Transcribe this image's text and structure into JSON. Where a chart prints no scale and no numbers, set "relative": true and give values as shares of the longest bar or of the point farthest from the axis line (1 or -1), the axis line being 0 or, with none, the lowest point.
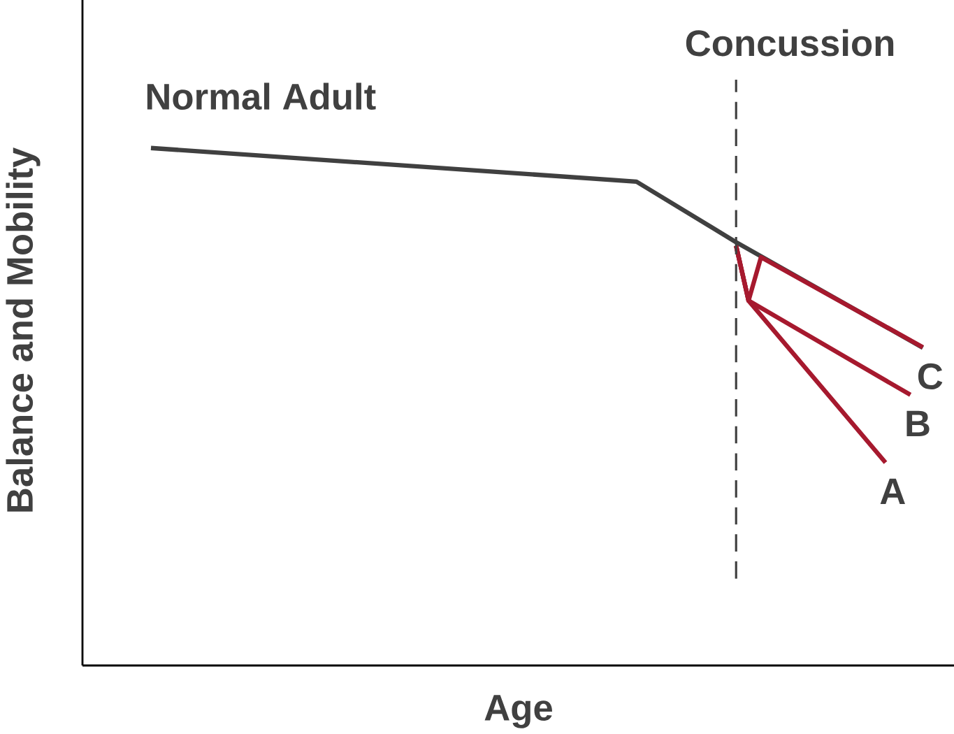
{
  "chart_data": {
    "type": "line",
    "relative": true,
    "xlabel": "Age",
    "ylabel": "Balance and Mobility",
    "marker": "none",
    "categories": [
      null,
      null,
      null,
      null,
      null,
      null,
      null,
      null,
      null,
      null,
      null,
      null,
      null,
      null,
      null,
      null,
      null,
      null,
      null,
      null,
      null,
      null,
      null,
      null,
      null,
      null,
      null,
      null,
      null,
      null,
      null,
      null,
      null,
      null,
      null,
      null,
      null,
      null,
      null,
      null,
      null,
      null,
      null,
      null,
      null,
      null,
      null,
      null,
      null,
      null,
      null,
      null,
      null,
      null,
      null,
      null,
      null,
      null,
      null,
      null,
      null,
      null,
      null,
      null,
      null,
      null,
      null,
      null,
      null,
      null
    ],
    "series": [
      {
        "name": "Normal Adult",
        "color": "#404040",
        "values": [
          null,
          null,
          null,
          null,
          null,
          1,
          null,
          null,
          null,
          null,
          null,
          null,
          null,
          null,
          null,
          null,
          null,
          null,
          null,
          null,
          null,
          null,
          null,
          null,
          null,
          null,
          null,
          null,
          null,
          null,
          null,
          null,
          null,
          null,
          null,
          null,
          null,
          null,
          null,
          null,
          null,
          null,
          null,
          null,
          0.935,
          null,
          null,
          null,
          null,
          null,
          null,
          null,
          0.818,
          null,
          null,
          null,
          null,
          null,
          null,
          null,
          null,
          null,
          null,
          null,
          null,
          null,
          null,
          0.614,
          null,
          null
        ]
      },
      {
        "name": "A",
        "color": "#a6192e",
        "values": [
          null,
          null,
          null,
          null,
          null,
          null,
          null,
          null,
          null,
          null,
          null,
          null,
          null,
          null,
          null,
          null,
          null,
          null,
          null,
          null,
          null,
          null,
          null,
          null,
          null,
          null,
          null,
          null,
          null,
          null,
          null,
          null,
          null,
          null,
          null,
          null,
          null,
          null,
          null,
          null,
          null,
          null,
          null,
          null,
          null,
          null,
          null,
          null,
          null,
          null,
          null,
          null,
          0.811,
          0.705,
          null,
          null,
          null,
          null,
          null,
          null,
          null,
          null,
          null,
          null,
          0.392,
          null,
          null,
          null,
          null,
          null
        ]
      },
      {
        "name": "B",
        "color": "#a6192e",
        "values": [
          null,
          null,
          null,
          null,
          null,
          null,
          null,
          null,
          null,
          null,
          null,
          null,
          null,
          null,
          null,
          null,
          null,
          null,
          null,
          null,
          null,
          null,
          null,
          null,
          null,
          null,
          null,
          null,
          null,
          null,
          null,
          null,
          null,
          null,
          null,
          null,
          null,
          null,
          null,
          null,
          null,
          null,
          null,
          null,
          null,
          null,
          null,
          null,
          null,
          null,
          null,
          null,
          0.811,
          0.705,
          null,
          null,
          null,
          null,
          null,
          null,
          null,
          null,
          null,
          null,
          null,
          null,
          0.523,
          null,
          null,
          null
        ]
      },
      {
        "name": "C",
        "color": "#a6192e",
        "values": [
          null,
          null,
          null,
          null,
          null,
          null,
          null,
          null,
          null,
          null,
          null,
          null,
          null,
          null,
          null,
          null,
          null,
          null,
          null,
          null,
          null,
          null,
          null,
          null,
          null,
          null,
          null,
          null,
          null,
          null,
          null,
          null,
          null,
          null,
          null,
          null,
          null,
          null,
          null,
          null,
          null,
          null,
          null,
          null,
          null,
          null,
          null,
          null,
          null,
          null,
          null,
          null,
          0.811,
          0.705,
          0.789,
          null,
          null,
          null,
          null,
          null,
          null,
          null,
          null,
          null,
          null,
          null,
          null,
          0.615,
          null,
          null
        ]
      }
    ],
    "annotations": [
      "Concussion"
    ]
  }
}
